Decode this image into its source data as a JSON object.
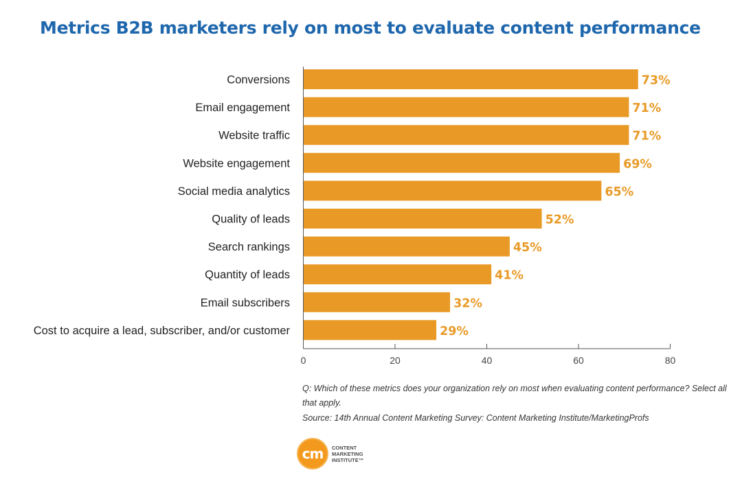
{
  "title": "Metrics B2B marketers rely on most to evaluate content performance",
  "chart_data": {
    "type": "bar",
    "orientation": "horizontal",
    "title": "Metrics B2B marketers rely on most to evaluate content performance",
    "categories": [
      "Conversions",
      "Email engagement",
      "Website traffic",
      "Website engagement",
      "Social media analytics",
      "Quality of leads",
      "Search rankings",
      "Quantity of leads",
      "Email subscribers",
      "Cost to acquire a lead, subscriber, and/or customer"
    ],
    "values": [
      73,
      71,
      71,
      69,
      65,
      52,
      45,
      41,
      32,
      29
    ],
    "value_labels": [
      "73%",
      "71%",
      "71%",
      "69%",
      "65%",
      "52%",
      "45%",
      "41%",
      "32%",
      "29%"
    ],
    "xlim": [
      0,
      80
    ],
    "xticks": [
      0,
      20,
      40,
      60,
      80
    ],
    "xlabel": "",
    "ylabel": "",
    "grid": false,
    "bar_color": "#e99a26",
    "label_color": "#e99a26"
  },
  "notes": {
    "question": "Q: Which of these metrics does your organization rely on most when evaluating content performance? Select all that apply.",
    "source": "Source: 14th Annual Content Marketing Survey: Content Marketing Institute/MarketingProfs"
  },
  "logo": {
    "mark": "cm",
    "lines": [
      "CONTENT",
      "MARKETING",
      "INSTITUTE™"
    ]
  },
  "colors": {
    "title": "#1f67ad",
    "bar": "#e99a26",
    "axis": "#555555",
    "text": "#222222",
    "logo": "#f39a1e"
  }
}
